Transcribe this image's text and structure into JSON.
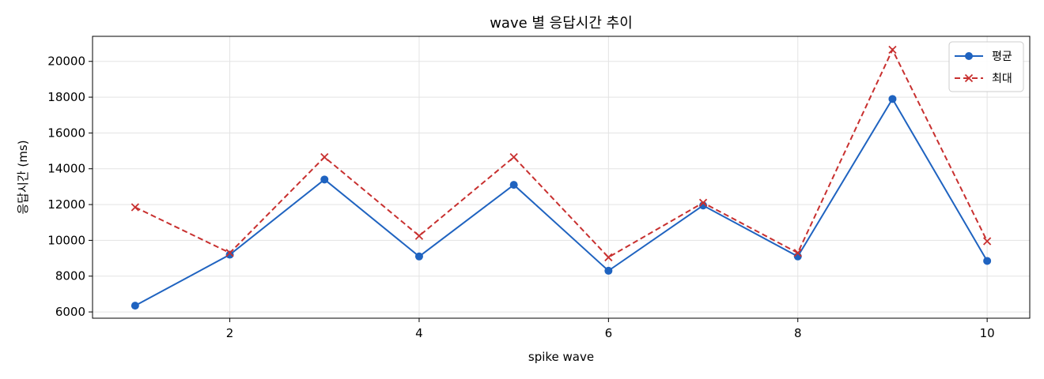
{
  "chart_data": {
    "type": "line",
    "title": "wave 별 응답시간 추이",
    "xlabel": "spike wave",
    "ylabel": "응답시간 (ms)",
    "x": [
      1,
      2,
      3,
      4,
      5,
      6,
      7,
      8,
      9,
      10
    ],
    "xlim": [
      0.55,
      10.45
    ],
    "ylim": [
      5650,
      21400
    ],
    "xticks": [
      2,
      4,
      6,
      8,
      10
    ],
    "yticks": [
      6000,
      8000,
      10000,
      12000,
      14000,
      16000,
      18000,
      20000
    ],
    "grid": true,
    "legend_position": "top-right",
    "series": [
      {
        "name": "평균",
        "values": [
          6350,
          9200,
          13400,
          9100,
          13100,
          8300,
          11950,
          9100,
          17900,
          8850
        ],
        "color": "#1f63c0",
        "line_style": "solid",
        "marker": "circle"
      },
      {
        "name": "최대",
        "values": [
          11850,
          9300,
          14650,
          10250,
          14650,
          9050,
          12100,
          9300,
          20650,
          9950
        ],
        "color": "#c8302f",
        "line_style": "dashed",
        "marker": "x"
      }
    ]
  }
}
